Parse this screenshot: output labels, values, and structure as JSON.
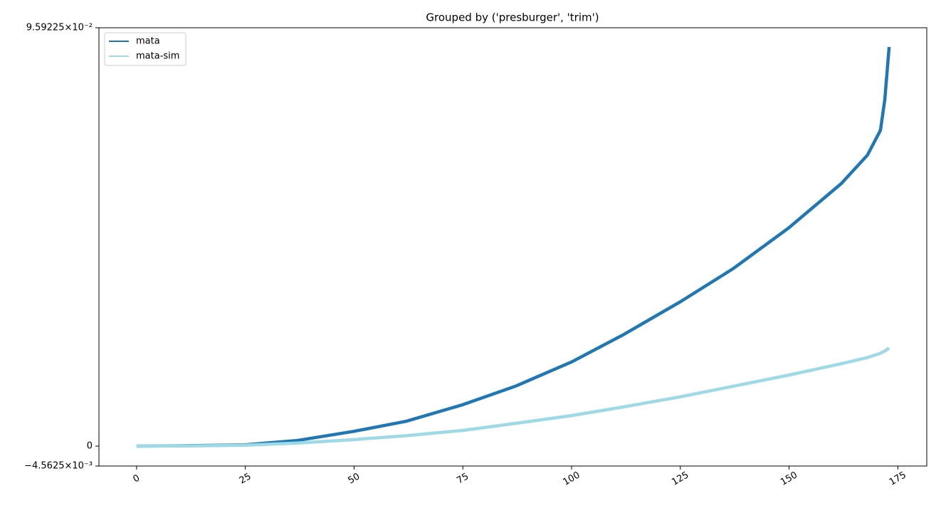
{
  "chart_data": {
    "type": "line",
    "title": "Grouped by ('presburger', 'trim')",
    "x": [
      0,
      12,
      25,
      37,
      50,
      62,
      75,
      87,
      100,
      112,
      125,
      137,
      150,
      162,
      168,
      171,
      172,
      173
    ],
    "series": [
      {
        "name": "mata",
        "color": "#1f77b4",
        "values": [
          0,
          0.0001,
          0.0003,
          0.0013,
          0.0034,
          0.0057,
          0.0095,
          0.0137,
          0.0193,
          0.0256,
          0.0331,
          0.0406,
          0.0501,
          0.0602,
          0.0667,
          0.0724,
          0.0794,
          0.0915
        ]
      },
      {
        "name": "mata-sim",
        "color": "#9edae5",
        "values": [
          0,
          5e-05,
          0.0002,
          0.0007,
          0.0015,
          0.0024,
          0.0036,
          0.0052,
          0.007,
          0.009,
          0.0113,
          0.0137,
          0.0163,
          0.0189,
          0.0203,
          0.0213,
          0.0218,
          0.0225
        ]
      }
    ],
    "xlim": [
      -8.65,
      181.65
    ],
    "xticks": [
      0,
      25,
      50,
      75,
      100,
      125,
      150,
      175
    ],
    "ylim": [
      -0.0045625,
      0.0959225
    ],
    "yticks": [
      {
        "value": -0.0045625,
        "label": "−4.5625×10⁻³"
      },
      0,
      {
        "value": 0.0959225,
        "label": "9.59225×10⁻²"
      }
    ],
    "legend": "upper left",
    "grid": false
  }
}
